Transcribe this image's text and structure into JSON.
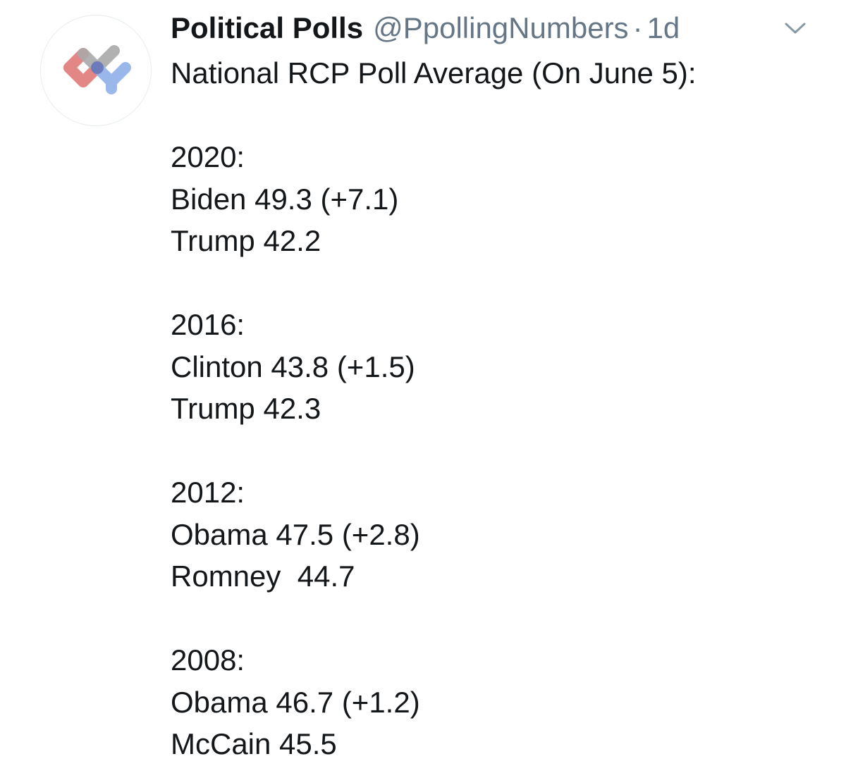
{
  "tweet": {
    "avatar_icon": "political-polls-logo-icon",
    "display_name": "Political Polls",
    "handle": "@PpollingNumbers",
    "separator": "·",
    "timestamp": "1d",
    "menu_icon": "chevron-down-icon",
    "headline": "National RCP Poll Average (On June 5):",
    "sections": [
      {
        "year_label": "2020:",
        "lines": [
          "Biden 49.3 (+7.1)",
          "Trump 42.2"
        ]
      },
      {
        "year_label": "2016:",
        "lines": [
          "Clinton 43.8 (+1.5)",
          "Trump 42.3"
        ]
      },
      {
        "year_label": "2012:",
        "lines": [
          "Obama 47.5 (+2.8)",
          "Romney  44.7"
        ]
      },
      {
        "year_label": "2008:",
        "lines": [
          "Obama 46.7 (+1.2)",
          "McCain 45.5"
        ]
      }
    ]
  },
  "colors": {
    "text_primary": "#14171a",
    "text_secondary": "#657786",
    "logo_red": "#e07a7a",
    "logo_gray": "#a9a9a9",
    "logo_blue": "#8fb0e8",
    "logo_navy": "#6a78b8"
  }
}
